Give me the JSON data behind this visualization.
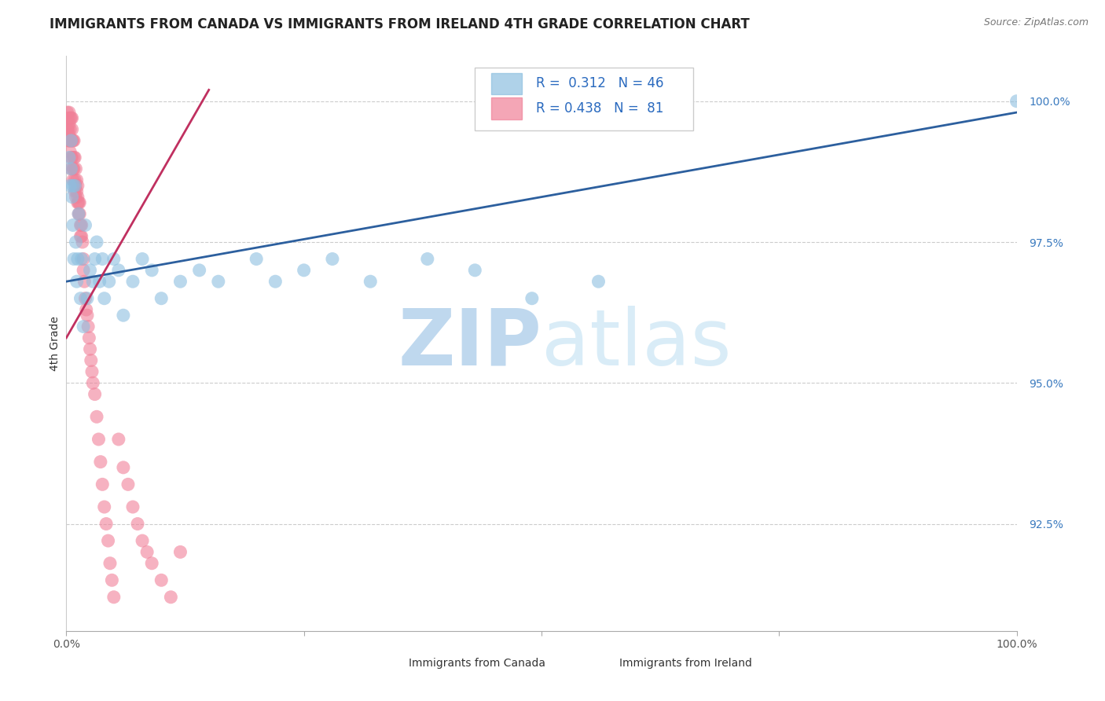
{
  "title": "IMMIGRANTS FROM CANADA VS IMMIGRANTS FROM IRELAND 4TH GRADE CORRELATION CHART",
  "source_text": "Source: ZipAtlas.com",
  "ylabel": "4th Grade",
  "xlim": [
    0.0,
    1.0
  ],
  "ylim": [
    0.906,
    1.008
  ],
  "yticks": [
    0.925,
    0.95,
    0.975,
    1.0
  ],
  "ytick_labels": [
    "92.5%",
    "95.0%",
    "97.5%",
    "100.0%"
  ],
  "xticks": [
    0.0,
    0.25,
    0.5,
    0.75,
    1.0
  ],
  "xtick_labels": [
    "0.0%",
    "",
    "",
    "",
    "100.0%"
  ],
  "canada_color": "#8dbfe0",
  "ireland_color": "#f08098",
  "canada_R": 0.312,
  "canada_N": 46,
  "ireland_R": 0.438,
  "ireland_N": 81,
  "trend_color_canada": "#2c5f9e",
  "trend_color_ireland": "#c03060",
  "background_color": "#ffffff",
  "grid_color": "#cccccc",
  "watermark_text": "ZIPatlas",
  "watermark_color": "#d0e8f5",
  "title_fontsize": 12,
  "axis_label_fontsize": 10,
  "tick_fontsize": 10,
  "legend_fontsize": 12,
  "source_fontsize": 9,
  "canada_x": [
    0.003,
    0.004,
    0.005,
    0.005,
    0.006,
    0.007,
    0.007,
    0.008,
    0.009,
    0.01,
    0.011,
    0.012,
    0.013,
    0.015,
    0.016,
    0.018,
    0.02,
    0.022,
    0.025,
    0.028,
    0.03,
    0.032,
    0.035,
    0.038,
    0.04,
    0.045,
    0.05,
    0.055,
    0.06,
    0.07,
    0.08,
    0.09,
    0.1,
    0.12,
    0.14,
    0.16,
    0.2,
    0.22,
    0.25,
    0.28,
    0.32,
    0.38,
    0.43,
    0.49,
    0.56,
    1.0
  ],
  "canada_y": [
    0.99,
    0.985,
    0.993,
    0.988,
    0.983,
    0.978,
    0.985,
    0.972,
    0.985,
    0.975,
    0.968,
    0.972,
    0.98,
    0.965,
    0.972,
    0.96,
    0.978,
    0.965,
    0.97,
    0.968,
    0.972,
    0.975,
    0.968,
    0.972,
    0.965,
    0.968,
    0.972,
    0.97,
    0.962,
    0.968,
    0.972,
    0.97,
    0.965,
    0.968,
    0.97,
    0.968,
    0.972,
    0.968,
    0.97,
    0.972,
    0.968,
    0.972,
    0.97,
    0.965,
    0.968,
    1.0
  ],
  "ireland_x": [
    0.001,
    0.001,
    0.002,
    0.002,
    0.002,
    0.003,
    0.003,
    0.003,
    0.003,
    0.004,
    0.004,
    0.004,
    0.004,
    0.005,
    0.005,
    0.005,
    0.005,
    0.006,
    0.006,
    0.006,
    0.006,
    0.007,
    0.007,
    0.007,
    0.008,
    0.008,
    0.008,
    0.009,
    0.009,
    0.009,
    0.01,
    0.01,
    0.01,
    0.011,
    0.011,
    0.012,
    0.012,
    0.012,
    0.013,
    0.013,
    0.014,
    0.014,
    0.015,
    0.015,
    0.016,
    0.016,
    0.017,
    0.018,
    0.018,
    0.019,
    0.02,
    0.021,
    0.022,
    0.023,
    0.024,
    0.025,
    0.026,
    0.027,
    0.028,
    0.03,
    0.032,
    0.034,
    0.036,
    0.038,
    0.04,
    0.042,
    0.044,
    0.046,
    0.048,
    0.05,
    0.055,
    0.06,
    0.065,
    0.07,
    0.075,
    0.08,
    0.085,
    0.09,
    0.1,
    0.11,
    0.12
  ],
  "ireland_y": [
    0.995,
    0.998,
    0.993,
    0.997,
    0.995,
    0.993,
    0.998,
    0.996,
    0.994,
    0.993,
    0.997,
    0.995,
    0.991,
    0.993,
    0.997,
    0.99,
    0.988,
    0.993,
    0.997,
    0.995,
    0.99,
    0.993,
    0.988,
    0.986,
    0.99,
    0.993,
    0.988,
    0.99,
    0.986,
    0.984,
    0.988,
    0.985,
    0.983,
    0.986,
    0.984,
    0.982,
    0.985,
    0.983,
    0.982,
    0.98,
    0.982,
    0.98,
    0.978,
    0.976,
    0.978,
    0.976,
    0.975,
    0.972,
    0.97,
    0.968,
    0.965,
    0.963,
    0.962,
    0.96,
    0.958,
    0.956,
    0.954,
    0.952,
    0.95,
    0.948,
    0.944,
    0.94,
    0.936,
    0.932,
    0.928,
    0.925,
    0.922,
    0.918,
    0.915,
    0.912,
    0.94,
    0.935,
    0.932,
    0.928,
    0.925,
    0.922,
    0.92,
    0.918,
    0.915,
    0.912,
    0.92
  ]
}
